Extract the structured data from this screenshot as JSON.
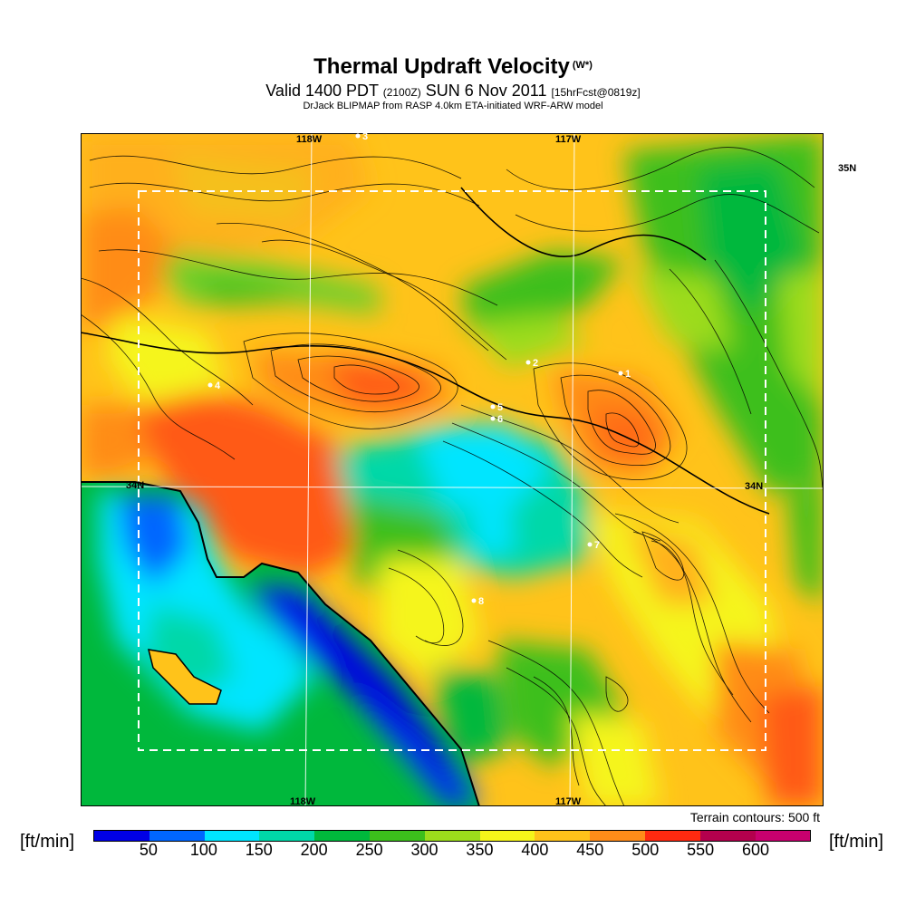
{
  "title": {
    "main": "Thermal Updraft Velocity",
    "symbol": "(W*)",
    "valid": "Valid 1400 PDT",
    "zulu": "(2100Z)",
    "date": "SUN 6 Nov 2011",
    "forecast": "[15hrFcst@0819z]",
    "credit": "DrJack BLIPMAP from RASP 4.0km ETA-initiated WRF-ARW model"
  },
  "map": {
    "lon_labels": [
      "118W",
      "117W"
    ],
    "lat_labels": [
      "35N",
      "34N"
    ],
    "station_labels": [
      "3",
      "4",
      "2",
      "1",
      "5",
      "6",
      "7",
      "8"
    ],
    "terrain_note": "Terrain contours: 500 ft"
  },
  "legend": {
    "unit": "[ft/min]",
    "ticks": [
      "50",
      "100",
      "150",
      "200",
      "250",
      "300",
      "350",
      "400",
      "450",
      "500",
      "550",
      "600"
    ],
    "colors": [
      "#0000e6",
      "#0066ff",
      "#00e5ff",
      "#00d8a8",
      "#00b83c",
      "#3cbf1c",
      "#9cdc1c",
      "#f5f51a",
      "#ffc31a",
      "#ff8c19",
      "#ff2a10",
      "#b3004d",
      "#c8006e"
    ]
  }
}
